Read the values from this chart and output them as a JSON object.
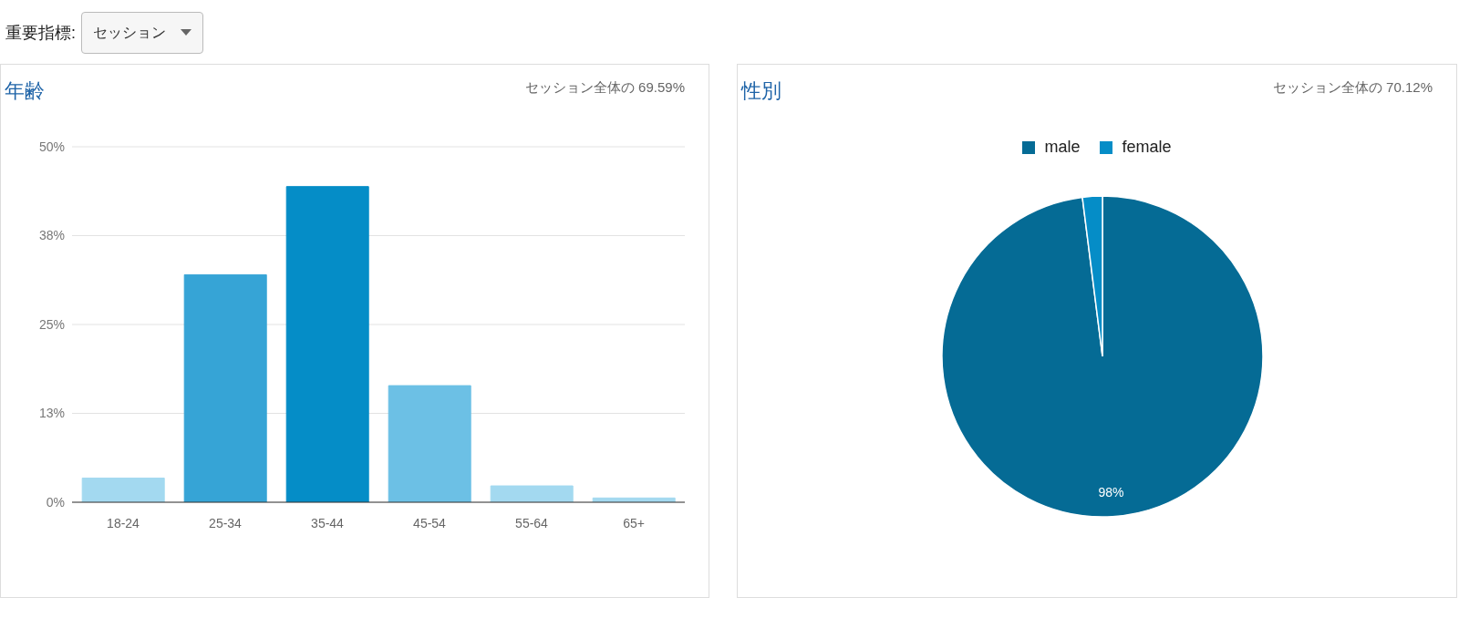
{
  "chart_data": [
    {
      "type": "other",
      "title": "重要指標:",
      "annotations": [
        "セッション"
      ]
    },
    {
      "type": "bar",
      "title": "年齢",
      "subtitle": "セッション全体の 69.59%",
      "categories": [
        "18-24",
        "25-34",
        "35-44",
        "45-54",
        "55-64",
        "65+"
      ],
      "values": [
        3.4,
        32.0,
        44.4,
        16.4,
        2.3,
        0.6
      ],
      "colors": [
        "#a3d9f0",
        "#36a4d6",
        "#058dc7",
        "#6cc0e5",
        "#a3d9f0",
        "#a3d9f0"
      ],
      "ylim": [
        0,
        50
      ],
      "yticks": [
        {
          "value": 0,
          "label": "0%"
        },
        {
          "value": 12.5,
          "label": "13%"
        },
        {
          "value": 25,
          "label": "25%"
        },
        {
          "value": 37.5,
          "label": "38%"
        },
        {
          "value": 50,
          "label": "50%"
        }
      ],
      "grid": "y"
    },
    {
      "type": "pie",
      "title": "性別",
      "subtitle": "セッション全体の 70.12%",
      "categories": [
        "male",
        "female"
      ],
      "values": [
        98,
        2
      ],
      "colors": [
        "#056b95",
        "#058dc7"
      ],
      "value_labels": [
        "98%",
        null
      ],
      "legend": "top"
    }
  ]
}
